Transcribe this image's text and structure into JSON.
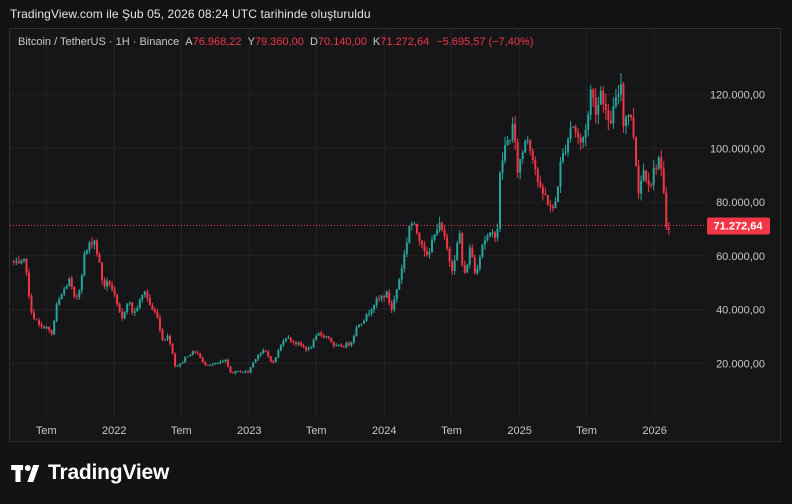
{
  "caption": "TradingView.com ile Şub 05, 2026 08:24 UTC tarihinde oluşturuldu",
  "brand": {
    "name": "TradingView",
    "icon": "tradingview-logo-icon"
  },
  "legend": {
    "symbol": "Bitcoin / TetherUS · 1H · Binance",
    "open_label": "A",
    "open": "76.968,22",
    "high_label": "Y",
    "high": "79.360,00",
    "low_label": "D",
    "low": "70.140,00",
    "close_label": "K",
    "close": "71.272,64",
    "change": "−5.695,57 (−7,40%)"
  },
  "price_badge": "71.272,64",
  "colors": {
    "up": "#26a69a",
    "down": "#f23645",
    "background": "#161619",
    "grid": "#232328",
    "axis_text": "#c9c9cc",
    "price_line": "#f23645"
  },
  "chart_data": {
    "type": "candlestick",
    "title": "Bitcoin / TetherUS · 1H · Binance",
    "x_ticks": [
      {
        "date": "2021-07-01",
        "label": "Tem"
      },
      {
        "date": "2022-01-01",
        "label": "2022"
      },
      {
        "date": "2022-07-01",
        "label": "Tem"
      },
      {
        "date": "2023-01-01",
        "label": "2023"
      },
      {
        "date": "2023-07-01",
        "label": "Tem"
      },
      {
        "date": "2024-01-01",
        "label": "2024"
      },
      {
        "date": "2024-07-01",
        "label": "Tem"
      },
      {
        "date": "2025-01-01",
        "label": "2025"
      },
      {
        "date": "2025-07-01",
        "label": "Tem"
      },
      {
        "date": "2026-01-01",
        "label": "2026"
      }
    ],
    "y_ticks": [
      {
        "value": 20000,
        "label": "20.000,00"
      },
      {
        "value": 40000,
        "label": "40.000,00"
      },
      {
        "value": 60000,
        "label": "60.000,00"
      },
      {
        "value": 80000,
        "label": "80.000,00"
      },
      {
        "value": 100000,
        "label": "100.000,00"
      },
      {
        "value": 120000,
        "label": "120.000,00"
      }
    ],
    "y_range": [
      0,
      134000
    ],
    "x_range": [
      "2021-03-25",
      "2026-05-20"
    ],
    "last_price": 71272.64,
    "grid": true,
    "price_path": [
      [
        "2021-04-01",
        58000
      ],
      [
        "2021-04-20",
        56000
      ],
      [
        "2021-05-10",
        58000
      ],
      [
        "2021-05-20",
        42000
      ],
      [
        "2021-06-01",
        37000
      ],
      [
        "2021-06-20",
        33000
      ],
      [
        "2021-07-01",
        34000
      ],
      [
        "2021-07-20",
        30500
      ],
      [
        "2021-08-01",
        41000
      ],
      [
        "2021-08-20",
        47000
      ],
      [
        "2021-09-05",
        51000
      ],
      [
        "2021-09-20",
        43000
      ],
      [
        "2021-10-01",
        47000
      ],
      [
        "2021-10-15",
        60000
      ],
      [
        "2021-11-10",
        67000
      ],
      [
        "2021-11-25",
        57000
      ],
      [
        "2021-12-05",
        49000
      ],
      [
        "2021-12-25",
        50000
      ],
      [
        "2022-01-10",
        42000
      ],
      [
        "2022-01-25",
        36000
      ],
      [
        "2022-02-10",
        44000
      ],
      [
        "2022-02-25",
        38000
      ],
      [
        "2022-03-28",
        47000
      ],
      [
        "2022-04-15",
        40000
      ],
      [
        "2022-05-01",
        38000
      ],
      [
        "2022-05-12",
        29000
      ],
      [
        "2022-06-01",
        30000
      ],
      [
        "2022-06-18",
        19000
      ],
      [
        "2022-07-01",
        19500
      ],
      [
        "2022-07-20",
        23000
      ],
      [
        "2022-08-15",
        24500
      ],
      [
        "2022-09-01",
        20000
      ],
      [
        "2022-10-01",
        19500
      ],
      [
        "2022-11-05",
        21000
      ],
      [
        "2022-11-10",
        16500
      ],
      [
        "2022-12-15",
        17000
      ],
      [
        "2023-01-01",
        16600
      ],
      [
        "2023-01-25",
        23000
      ],
      [
        "2023-02-15",
        24500
      ],
      [
        "2023-03-10",
        20000
      ],
      [
        "2023-04-10",
        30000
      ],
      [
        "2023-05-10",
        27500
      ],
      [
        "2023-06-15",
        25000
      ],
      [
        "2023-07-10",
        31000
      ],
      [
        "2023-08-10",
        29500
      ],
      [
        "2023-08-20",
        26000
      ],
      [
        "2023-09-15",
        26500
      ],
      [
        "2023-10-05",
        27500
      ],
      [
        "2023-10-25",
        34500
      ],
      [
        "2023-11-15",
        37000
      ],
      [
        "2023-12-05",
        42000
      ],
      [
        "2024-01-10",
        46000
      ],
      [
        "2024-01-25",
        40000
      ],
      [
        "2024-02-15",
        52000
      ],
      [
        "2024-03-01",
        62000
      ],
      [
        "2024-03-14",
        73000
      ],
      [
        "2024-04-01",
        69000
      ],
      [
        "2024-04-20",
        64000
      ],
      [
        "2024-05-01",
        58000
      ],
      [
        "2024-05-20",
        70000
      ],
      [
        "2024-06-05",
        71000
      ],
      [
        "2024-06-25",
        61000
      ],
      [
        "2024-07-05",
        55000
      ],
      [
        "2024-07-28",
        69000
      ],
      [
        "2024-08-05",
        50000
      ],
      [
        "2024-08-25",
        64000
      ],
      [
        "2024-09-06",
        53000
      ],
      [
        "2024-09-28",
        66000
      ],
      [
        "2024-10-15",
        67000
      ],
      [
        "2024-11-05",
        69000
      ],
      [
        "2024-11-12",
        89000
      ],
      [
        "2024-11-22",
        99000
      ],
      [
        "2024-12-05",
        103000
      ],
      [
        "2024-12-17",
        108000
      ],
      [
        "2024-12-30",
        92000
      ],
      [
        "2025-01-15",
        100000
      ],
      [
        "2025-01-22",
        106000
      ],
      [
        "2025-02-10",
        97000
      ],
      [
        "2025-02-28",
        84000
      ],
      [
        "2025-03-15",
        82000
      ],
      [
        "2025-04-07",
        76000
      ],
      [
        "2025-04-25",
        94000
      ],
      [
        "2025-05-15",
        104000
      ],
      [
        "2025-05-25",
        110000
      ],
      [
        "2025-06-20",
        101000
      ],
      [
        "2025-07-10",
        113000
      ],
      [
        "2025-07-14",
        122000
      ],
      [
        "2025-08-01",
        114000
      ],
      [
        "2025-08-14",
        123000
      ],
      [
        "2025-09-01",
        108000
      ],
      [
        "2025-09-20",
        116000
      ],
      [
        "2025-10-06",
        125000
      ],
      [
        "2025-10-11",
        110000
      ],
      [
        "2025-10-28",
        114000
      ],
      [
        "2025-11-10",
        104000
      ],
      [
        "2025-11-21",
        84000
      ],
      [
        "2025-12-05",
        92000
      ],
      [
        "2025-12-25",
        87000
      ],
      [
        "2026-01-05",
        93000
      ],
      [
        "2026-01-15",
        97000
      ],
      [
        "2026-01-25",
        88000
      ],
      [
        "2026-02-01",
        78000
      ],
      [
        "2026-02-05",
        71272.64
      ]
    ]
  }
}
